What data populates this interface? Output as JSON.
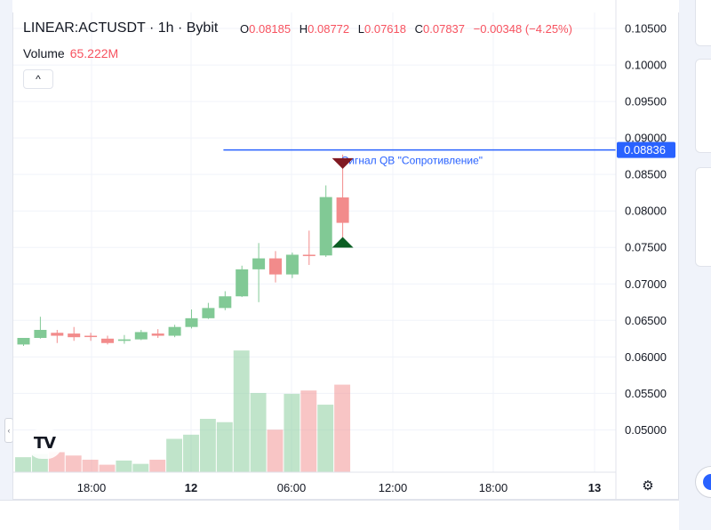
{
  "legend": {
    "title": "LINEAR:ACTUSDT · 1h · Bybit",
    "ohlc": [
      {
        "key": "O",
        "value": "0.08185"
      },
      {
        "key": "H",
        "value": "0.08772"
      },
      {
        "key": "L",
        "value": "0.07618"
      },
      {
        "key": "C",
        "value": "0.07837"
      },
      {
        "key": "",
        "value": "−0.00348 (−4.25%)"
      }
    ],
    "volume_label": "Volume",
    "volume_value": "65.222M",
    "collapse_glyph": "^"
  },
  "logo_text": "TV",
  "settings_icon": "gear-icon",
  "colors": {
    "up": "#089981",
    "down": "#f23645",
    "up_body": "#81c995",
    "down_body": "#f28b8b",
    "line": "#2962ff",
    "signal_text": "#2962ff",
    "signal_down": "#801922",
    "signal_up": "#0b5e23"
  },
  "chart_data": {
    "type": "candlestick",
    "price_axis": {
      "ticks": [
        "0.10500",
        "0.10000",
        "0.09500",
        "0.09000",
        "0.08500",
        "0.08000",
        "0.07500",
        "0.07000",
        "0.06500",
        "0.06000",
        "0.05500",
        "0.05000"
      ],
      "range": [
        0.0442,
        0.1072
      ]
    },
    "time_axis": {
      "ticks": [
        "18:00",
        "12",
        "06:00",
        "12:00",
        "18:00",
        "13"
      ],
      "bold": [
        "12",
        "13"
      ]
    },
    "candles": [
      {
        "o": 0.0617,
        "h": 0.0626,
        "l": 0.0615,
        "c": 0.0626
      },
      {
        "o": 0.0626,
        "h": 0.0655,
        "l": 0.0625,
        "c": 0.0637
      },
      {
        "o": 0.0633,
        "h": 0.0637,
        "l": 0.0619,
        "c": 0.0629
      },
      {
        "o": 0.0632,
        "h": 0.0641,
        "l": 0.0622,
        "c": 0.0627
      },
      {
        "o": 0.0629,
        "h": 0.0633,
        "l": 0.0622,
        "c": 0.0628
      },
      {
        "o": 0.0625,
        "h": 0.0629,
        "l": 0.0617,
        "c": 0.0619
      },
      {
        "o": 0.0622,
        "h": 0.063,
        "l": 0.0618,
        "c": 0.0624
      },
      {
        "o": 0.0624,
        "h": 0.0637,
        "l": 0.0623,
        "c": 0.0634
      },
      {
        "o": 0.0632,
        "h": 0.0638,
        "l": 0.0626,
        "c": 0.0629
      },
      {
        "o": 0.0629,
        "h": 0.0644,
        "l": 0.0627,
        "c": 0.0641
      },
      {
        "o": 0.0641,
        "h": 0.0665,
        "l": 0.0639,
        "c": 0.0653
      },
      {
        "o": 0.0653,
        "h": 0.0674,
        "l": 0.0652,
        "c": 0.0667
      },
      {
        "o": 0.0667,
        "h": 0.069,
        "l": 0.0664,
        "c": 0.0683
      },
      {
        "o": 0.0683,
        "h": 0.0725,
        "l": 0.0682,
        "c": 0.072
      },
      {
        "o": 0.072,
        "h": 0.0756,
        "l": 0.0675,
        "c": 0.0735
      },
      {
        "o": 0.0735,
        "h": 0.0745,
        "l": 0.0702,
        "c": 0.0713
      },
      {
        "o": 0.0713,
        "h": 0.0743,
        "l": 0.0708,
        "c": 0.074
      },
      {
        "o": 0.074,
        "h": 0.0773,
        "l": 0.0726,
        "c": 0.0739
      },
      {
        "o": 0.0739,
        "h": 0.0835,
        "l": 0.0737,
        "c": 0.0819
      },
      {
        "o": 0.08185,
        "h": 0.08772,
        "l": 0.07618,
        "c": 0.07837
      }
    ],
    "volumes": [
      0.18,
      0.22,
      0.24,
      0.2,
      0.15,
      0.09,
      0.14,
      0.1,
      0.15,
      0.4,
      0.45,
      0.64,
      0.6,
      1.46,
      0.95,
      0.51,
      0.94,
      0.98,
      0.81,
      1.05
    ],
    "volume_range": [
      0,
      1.6
    ],
    "horizontal_line": {
      "price": 0.08836,
      "label": "0.08836",
      "start_candle": 11.9
    },
    "signal": {
      "text": "Сигнал QB \"Сопротивление\"",
      "candle": 19
    }
  }
}
